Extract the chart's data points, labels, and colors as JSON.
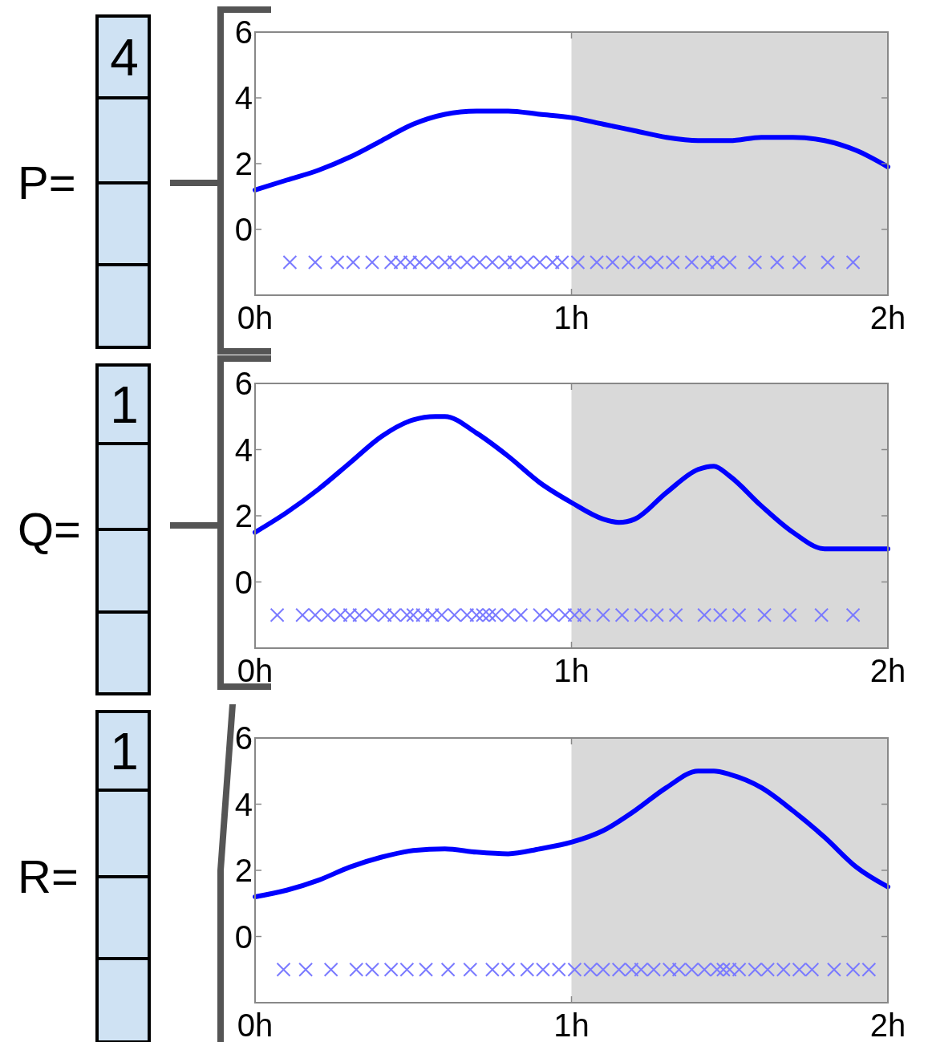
{
  "chart_data": [
    {
      "type": "line",
      "xlim": [
        0,
        2
      ],
      "ylim": [
        -2,
        6
      ],
      "xticks": [
        {
          "value": 0,
          "label": "0h"
        },
        {
          "value": 1,
          "label": "1h"
        },
        {
          "value": 2,
          "label": "2h"
        }
      ],
      "yticks": [
        0,
        2,
        4,
        6
      ],
      "bands": [
        {
          "axis": "x",
          "from": 1,
          "to": 2,
          "color": "#d9d9d9"
        }
      ],
      "annotations": [
        "P=",
        "4"
      ],
      "series": [
        {
          "type": "line",
          "color": "#0000ff",
          "x": [
            0,
            0.1,
            0.2,
            0.3,
            0.4,
            0.5,
            0.6,
            0.7,
            0.8,
            0.9,
            1.0,
            1.1,
            1.2,
            1.3,
            1.4,
            1.5,
            1.6,
            1.7,
            1.8,
            1.9,
            2.0
          ],
          "values": [
            1.2,
            1.5,
            1.8,
            2.2,
            2.7,
            3.2,
            3.5,
            3.6,
            3.6,
            3.5,
            3.4,
            3.2,
            3.0,
            2.8,
            2.7,
            2.7,
            2.8,
            2.8,
            2.7,
            2.4,
            1.9
          ]
        },
        {
          "type": "scatter",
          "color": "#7a7aff",
          "marker": "cross",
          "x": [
            0.11,
            0.19,
            0.26,
            0.31,
            0.37,
            0.43,
            0.46,
            0.49,
            0.52,
            0.56,
            0.6,
            0.63,
            0.67,
            0.71,
            0.75,
            0.79,
            0.82,
            0.86,
            0.9,
            0.94,
            0.97,
            1.02,
            1.08,
            1.13,
            1.18,
            1.23,
            1.27,
            1.32,
            1.38,
            1.43,
            1.46,
            1.5,
            1.58,
            1.65,
            1.72,
            1.81,
            1.89
          ],
          "values": [
            -1,
            -1,
            -1,
            -1,
            -1,
            -1,
            -1,
            -1,
            -1,
            -1,
            -1,
            -1,
            -1,
            -1,
            -1,
            -1,
            -1,
            -1,
            -1,
            -1,
            -1,
            -1,
            -1,
            -1,
            -1,
            -1,
            -1,
            -1,
            -1,
            -1,
            -1,
            -1,
            -1,
            -1,
            -1,
            -1,
            -1
          ]
        }
      ]
    },
    {
      "type": "line",
      "xlim": [
        0,
        2
      ],
      "ylim": [
        -2,
        6
      ],
      "xticks": [
        {
          "value": 0,
          "label": "0h"
        },
        {
          "value": 1,
          "label": "1h"
        },
        {
          "value": 2,
          "label": "2h"
        }
      ],
      "yticks": [
        0,
        2,
        4,
        6
      ],
      "bands": [
        {
          "axis": "x",
          "from": 1,
          "to": 2,
          "color": "#d9d9d9"
        }
      ],
      "annotations": [
        "Q=",
        "1"
      ],
      "series": [
        {
          "type": "line",
          "color": "#0000ff",
          "x": [
            0,
            0.1,
            0.2,
            0.3,
            0.4,
            0.5,
            0.57,
            0.6,
            0.7,
            0.8,
            0.9,
            1.0,
            1.1,
            1.15,
            1.2,
            1.3,
            1.4,
            1.45,
            1.5,
            1.6,
            1.7,
            1.8,
            1.9,
            2.0
          ],
          "values": [
            1.5,
            2.1,
            2.8,
            3.6,
            4.4,
            4.9,
            5.0,
            5.0,
            4.5,
            3.8,
            3.0,
            2.4,
            1.9,
            1.8,
            1.9,
            2.7,
            3.4,
            3.5,
            3.2,
            2.3,
            1.5,
            1.0,
            1.0,
            1.0
          ]
        },
        {
          "type": "scatter",
          "color": "#7a7aff",
          "marker": "cross",
          "x": [
            0.07,
            0.15,
            0.19,
            0.23,
            0.27,
            0.3,
            0.33,
            0.37,
            0.41,
            0.44,
            0.48,
            0.5,
            0.53,
            0.56,
            0.59,
            0.63,
            0.67,
            0.7,
            0.72,
            0.74,
            0.76,
            0.8,
            0.84,
            0.9,
            0.94,
            0.98,
            1.01,
            1.04,
            1.1,
            1.16,
            1.22,
            1.27,
            1.33,
            1.42,
            1.47,
            1.53,
            1.61,
            1.69,
            1.79,
            1.89
          ],
          "values": [
            -1,
            -1,
            -1,
            -1,
            -1,
            -1,
            -1,
            -1,
            -1,
            -1,
            -1,
            -1,
            -1,
            -1,
            -1,
            -1,
            -1,
            -1,
            -1,
            -1,
            -1,
            -1,
            -1,
            -1,
            -1,
            -1,
            -1,
            -1,
            -1,
            -1,
            -1,
            -1,
            -1,
            -1,
            -1,
            -1,
            -1,
            -1,
            -1,
            -1
          ]
        }
      ]
    },
    {
      "type": "line",
      "xlim": [
        0,
        2
      ],
      "ylim": [
        -2,
        6
      ],
      "xticks": [
        {
          "value": 0,
          "label": "0h"
        },
        {
          "value": 1,
          "label": "1h"
        },
        {
          "value": 2,
          "label": "2h"
        }
      ],
      "yticks": [
        0,
        2,
        4,
        6
      ],
      "bands": [
        {
          "axis": "x",
          "from": 1,
          "to": 2,
          "color": "#d9d9d9"
        }
      ],
      "annotations": [
        "R=",
        "1"
      ],
      "series": [
        {
          "type": "line",
          "color": "#0000ff",
          "x": [
            0,
            0.1,
            0.2,
            0.3,
            0.4,
            0.5,
            0.6,
            0.7,
            0.8,
            0.9,
            1.0,
            1.1,
            1.2,
            1.3,
            1.4,
            1.45,
            1.5,
            1.6,
            1.7,
            1.8,
            1.9,
            2.0
          ],
          "values": [
            1.2,
            1.4,
            1.7,
            2.1,
            2.4,
            2.6,
            2.65,
            2.55,
            2.5,
            2.65,
            2.85,
            3.2,
            3.8,
            4.5,
            5.0,
            5.0,
            4.9,
            4.5,
            3.8,
            3.0,
            2.1,
            1.5
          ]
        },
        {
          "type": "scatter",
          "color": "#7a7aff",
          "marker": "cross",
          "x": [
            0.09,
            0.16,
            0.24,
            0.32,
            0.37,
            0.43,
            0.48,
            0.54,
            0.61,
            0.68,
            0.75,
            0.8,
            0.86,
            0.91,
            0.96,
            1.01,
            1.06,
            1.1,
            1.15,
            1.19,
            1.22,
            1.26,
            1.31,
            1.34,
            1.38,
            1.42,
            1.46,
            1.48,
            1.5,
            1.53,
            1.58,
            1.62,
            1.67,
            1.72,
            1.76,
            1.83,
            1.89,
            1.94
          ],
          "values": [
            -1,
            -1,
            -1,
            -1,
            -1,
            -1,
            -1,
            -1,
            -1,
            -1,
            -1,
            -1,
            -1,
            -1,
            -1,
            -1,
            -1,
            -1,
            -1,
            -1,
            -1,
            -1,
            -1,
            -1,
            -1,
            -1,
            -1,
            -1,
            -1,
            -1,
            -1,
            -1,
            -1,
            -1,
            -1,
            -1,
            -1,
            -1
          ]
        }
      ]
    }
  ]
}
